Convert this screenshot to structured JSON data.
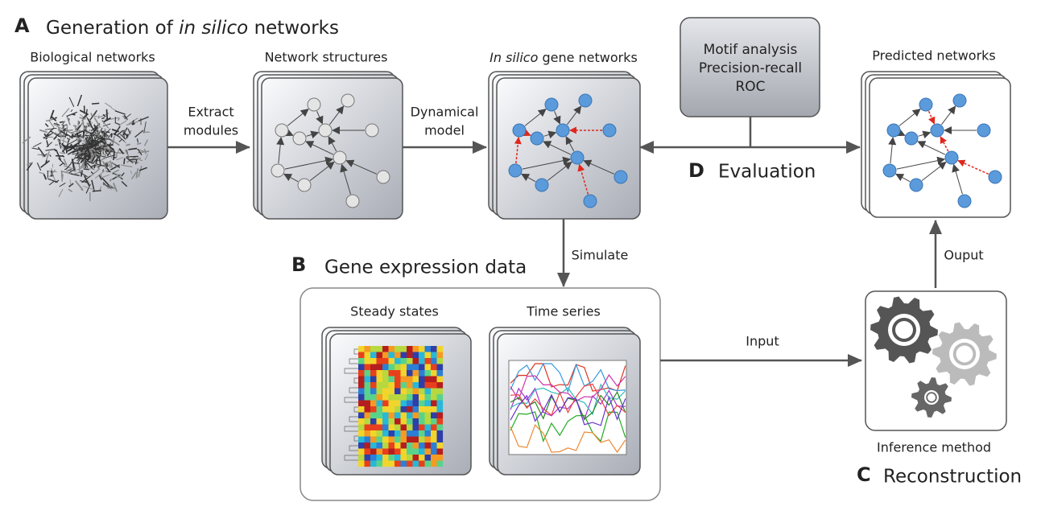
{
  "panel_a": {
    "letter": "A",
    "title": [
      "Generation of",
      "in silico",
      "networks"
    ]
  },
  "stages": {
    "biological": "Biological networks",
    "structures": "Network structures",
    "in_silico": [
      "In silico",
      "gene networks"
    ],
    "predicted": "Predicted networks"
  },
  "edges": {
    "extract": [
      "Extract",
      "modules"
    ],
    "dynamical": [
      "Dynamical",
      "model"
    ],
    "simulate": "Simulate",
    "input": "Input",
    "output": "Ouput"
  },
  "evaluation_box": [
    "Motif analysis",
    "Precision-recall",
    "ROC"
  ],
  "panel_d": {
    "letter": "D",
    "title": "Evaluation"
  },
  "panel_b": {
    "letter": "B",
    "title": "Gene expression data",
    "steady": "Steady states",
    "time": "Time series"
  },
  "panel_c": {
    "letter": "C",
    "title": "Reconstruction",
    "method": "Inference method"
  }
}
